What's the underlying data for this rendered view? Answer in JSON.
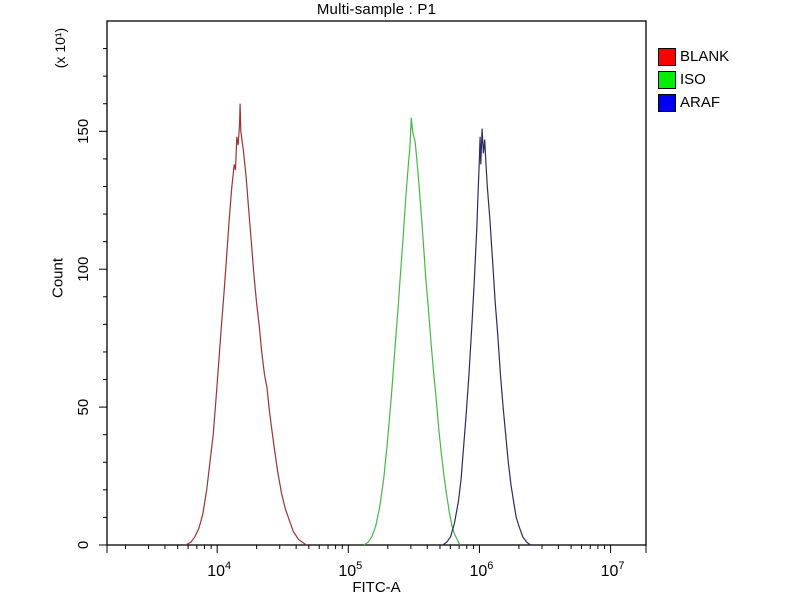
{
  "chart_data": {
    "type": "line",
    "title": "Multi-sample : P1",
    "xlabel": "FITC-A",
    "ylabel": "Count",
    "y_multiplier_label": "(x 10¹)",
    "x_scale": "log10",
    "xlim_log10": [
      3.16,
      7.27
    ],
    "ylim": [
      0,
      190
    ],
    "grid": false,
    "y_axis": {
      "major_ticks": [
        {
          "value": 0,
          "label": "0"
        },
        {
          "value": 50,
          "label": "50"
        },
        {
          "value": 100,
          "label": "100"
        },
        {
          "value": 150,
          "label": "150"
        }
      ],
      "minor_tick_step": 10,
      "labels_rotated": true
    },
    "x_axis": {
      "tick_label_base": "10",
      "major_tick_exponents": [
        4,
        5,
        6,
        7
      ],
      "minor_ticks_per_decade": "2-9"
    },
    "legend": {
      "position": "right",
      "items": [
        {
          "label": "BLANK",
          "swatch_color": "#ff0000"
        },
        {
          "label": "ISO",
          "swatch_color": "#00ee00"
        },
        {
          "label": "ARAF",
          "swatch_color": "#0000ee"
        }
      ]
    },
    "series": [
      {
        "name": "BLANK",
        "stroke_color": "#9b3434",
        "peak_fitc_approx": 15000,
        "peak_count_display": 160,
        "points_log10x_count": [
          [
            3.76,
            0
          ],
          [
            3.8,
            1
          ],
          [
            3.83,
            3
          ],
          [
            3.86,
            6
          ],
          [
            3.89,
            11
          ],
          [
            3.92,
            20
          ],
          [
            3.95,
            32
          ],
          [
            3.97,
            40
          ],
          [
            3.99,
            52
          ],
          [
            4.01,
            65
          ],
          [
            4.03,
            78
          ],
          [
            4.05,
            90
          ],
          [
            4.07,
            103
          ],
          [
            4.09,
            117
          ],
          [
            4.11,
            129
          ],
          [
            4.13,
            138
          ],
          [
            4.14,
            136
          ],
          [
            4.15,
            148
          ],
          [
            4.16,
            145
          ],
          [
            4.17,
            152
          ],
          [
            4.175,
            160
          ],
          [
            4.18,
            150
          ],
          [
            4.2,
            143
          ],
          [
            4.22,
            134
          ],
          [
            4.24,
            122
          ],
          [
            4.26,
            110
          ],
          [
            4.28,
            98
          ],
          [
            4.3,
            88
          ],
          [
            4.32,
            80
          ],
          [
            4.34,
            70
          ],
          [
            4.36,
            62
          ],
          [
            4.38,
            57
          ],
          [
            4.4,
            48
          ],
          [
            4.43,
            37
          ],
          [
            4.46,
            27
          ],
          [
            4.49,
            19
          ],
          [
            4.52,
            13
          ],
          [
            4.55,
            9
          ],
          [
            4.58,
            5
          ],
          [
            4.62,
            2
          ],
          [
            4.65,
            1
          ],
          [
            4.68,
            0
          ]
        ]
      },
      {
        "name": "ISO",
        "stroke_color": "#46b846",
        "peak_fitc_approx": 300000,
        "peak_count_display": 155,
        "points_log10x_count": [
          [
            5.12,
            0
          ],
          [
            5.15,
            1
          ],
          [
            5.18,
            3
          ],
          [
            5.21,
            7
          ],
          [
            5.24,
            14
          ],
          [
            5.27,
            24
          ],
          [
            5.3,
            38
          ],
          [
            5.33,
            55
          ],
          [
            5.36,
            74
          ],
          [
            5.38,
            86
          ],
          [
            5.4,
            100
          ],
          [
            5.42,
            113
          ],
          [
            5.44,
            127
          ],
          [
            5.46,
            139
          ],
          [
            5.47,
            144
          ],
          [
            5.48,
            155
          ],
          [
            5.49,
            150
          ],
          [
            5.51,
            146
          ],
          [
            5.53,
            136
          ],
          [
            5.55,
            124
          ],
          [
            5.57,
            111
          ],
          [
            5.59,
            97
          ],
          [
            5.61,
            86
          ],
          [
            5.63,
            74
          ],
          [
            5.65,
            63
          ],
          [
            5.67,
            53
          ],
          [
            5.69,
            42
          ],
          [
            5.71,
            33
          ],
          [
            5.73,
            25
          ],
          [
            5.75,
            18
          ],
          [
            5.77,
            12
          ],
          [
            5.79,
            7
          ],
          [
            5.81,
            4
          ],
          [
            5.83,
            2
          ],
          [
            5.85,
            0
          ]
        ]
      },
      {
        "name": "ARAF",
        "stroke_color": "#2b2b66",
        "peak_fitc_approx": 1050000,
        "peak_count_display": 151,
        "points_log10x_count": [
          [
            5.72,
            0
          ],
          [
            5.75,
            1
          ],
          [
            5.78,
            3
          ],
          [
            5.81,
            8
          ],
          [
            5.84,
            16
          ],
          [
            5.86,
            24
          ],
          [
            5.88,
            36
          ],
          [
            5.9,
            48
          ],
          [
            5.92,
            62
          ],
          [
            5.94,
            78
          ],
          [
            5.96,
            95
          ],
          [
            5.98,
            115
          ],
          [
            5.99,
            128
          ],
          [
            6.0,
            140
          ],
          [
            6.005,
            148
          ],
          [
            6.01,
            138
          ],
          [
            6.02,
            151
          ],
          [
            6.03,
            142
          ],
          [
            6.04,
            147
          ],
          [
            6.05,
            138
          ],
          [
            6.06,
            130
          ],
          [
            6.08,
            118
          ],
          [
            6.1,
            103
          ],
          [
            6.12,
            88
          ],
          [
            6.14,
            76
          ],
          [
            6.16,
            62
          ],
          [
            6.18,
            50
          ],
          [
            6.2,
            40
          ],
          [
            6.22,
            30
          ],
          [
            6.24,
            22
          ],
          [
            6.26,
            16
          ],
          [
            6.28,
            10
          ],
          [
            6.3,
            7
          ],
          [
            6.33,
            3
          ],
          [
            6.36,
            1
          ],
          [
            6.39,
            0
          ]
        ]
      }
    ]
  }
}
